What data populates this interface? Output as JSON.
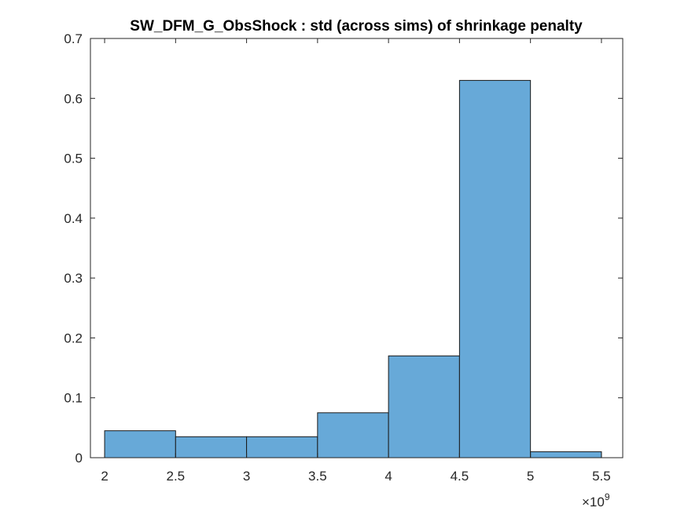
{
  "chart_data": {
    "type": "bar",
    "title": "SW_DFM_G_ObsShock : std (across sims) of shrinkage penalty",
    "xlabel": "",
    "ylabel": "",
    "x_exponent_label": "×10",
    "x_exponent_power": "9",
    "xlim": [
      1.9,
      5.65
    ],
    "ylim": [
      0,
      0.7
    ],
    "xticks": [
      2,
      2.5,
      3,
      3.5,
      4,
      4.5,
      5,
      5.5
    ],
    "xtick_labels": [
      "2",
      "2.5",
      "3",
      "3.5",
      "4",
      "4.5",
      "5",
      "5.5"
    ],
    "yticks": [
      0,
      0.1,
      0.2,
      0.3,
      0.4,
      0.5,
      0.6,
      0.7
    ],
    "ytick_labels": [
      "0",
      "0.1",
      "0.2",
      "0.3",
      "0.4",
      "0.5",
      "0.6",
      "0.7"
    ],
    "bin_edges": [
      2,
      2.5,
      3,
      3.5,
      4,
      4.5,
      5,
      5.5
    ],
    "values": [
      0.045,
      0.035,
      0.035,
      0.075,
      0.17,
      0.63,
      0.01
    ],
    "grid": false,
    "bar_color": "#67a9d8",
    "edge_color": "#1a1a1a"
  }
}
